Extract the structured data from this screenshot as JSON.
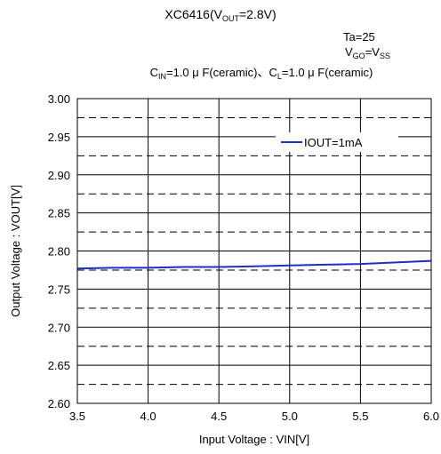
{
  "header": {
    "title_main": "XC6416(V",
    "title_sub": "OUT",
    "title_tail": "=2.8V)",
    "ta": "Ta=25",
    "vgo_a": "V",
    "vgo_a_sub": "GO",
    "vgo_eq": "=V",
    "vgo_b_sub": "SS",
    "cin_a": "C",
    "cin_a_sub": "IN",
    "cin_mid": "=1.0 μ F(ceramic)、C",
    "cin_b_sub": "L",
    "cin_tail": "=1.0 μ F(ceramic)"
  },
  "chart_data": {
    "type": "line",
    "xlabel": "Input Voltage : VIN[V]",
    "ylabel": "Output Voltage : VOUT[V]",
    "xlim": [
      3.5,
      6.0
    ],
    "ylim": [
      2.6,
      3.0
    ],
    "x_ticks": [
      "3.5",
      "4.0",
      "4.5",
      "5.0",
      "5.5",
      "6.0"
    ],
    "y_ticks": [
      "2.60",
      "2.65",
      "2.70",
      "2.75",
      "2.80",
      "2.85",
      "2.90",
      "2.95",
      "3.00"
    ],
    "grid": true,
    "legend_position": "upper-right",
    "series": [
      {
        "name": "IOUT=1mA",
        "color": "#1f2fbf",
        "x": [
          3.5,
          3.75,
          4.0,
          4.25,
          4.5,
          4.75,
          5.0,
          5.25,
          5.5,
          5.75,
          6.0
        ],
        "y": [
          2.777,
          2.778,
          2.778,
          2.779,
          2.779,
          2.78,
          2.781,
          2.782,
          2.783,
          2.785,
          2.787
        ]
      }
    ]
  }
}
